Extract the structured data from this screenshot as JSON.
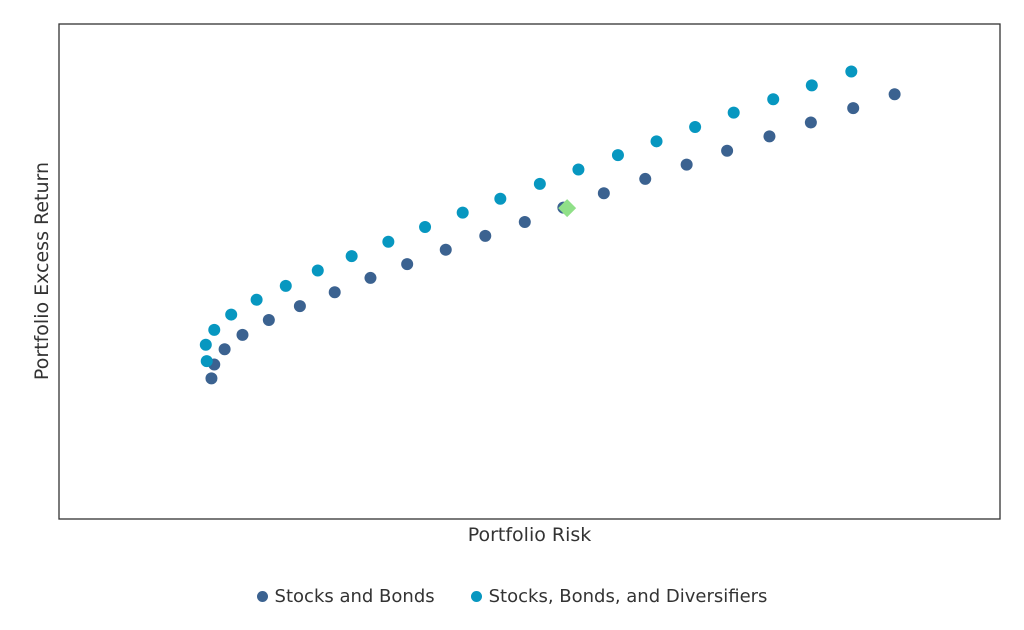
{
  "chart_data": {
    "type": "scatter",
    "title": "",
    "xlabel": "Portfolio Risk",
    "ylabel": "Portfolio Excess Return",
    "xlim": [
      0,
      100
    ],
    "ylim": [
      0,
      100
    ],
    "grid": false,
    "legend_position": "bottom-center",
    "series": [
      {
        "name": "Stocks and Bonds",
        "color": "#3b6290",
        "points": [
          [
            16.2,
            28.4
          ],
          [
            16.5,
            31.2
          ],
          [
            17.6,
            34.3
          ],
          [
            19.5,
            37.2
          ],
          [
            22.3,
            40.2
          ],
          [
            25.6,
            43.0
          ],
          [
            29.3,
            45.8
          ],
          [
            33.1,
            48.7
          ],
          [
            37.0,
            51.5
          ],
          [
            41.1,
            54.4
          ],
          [
            45.3,
            57.2
          ],
          [
            49.5,
            60.0
          ],
          [
            53.6,
            62.9
          ],
          [
            57.9,
            65.8
          ],
          [
            62.3,
            68.7
          ],
          [
            66.7,
            71.6
          ],
          [
            71.0,
            74.4
          ],
          [
            75.5,
            77.3
          ],
          [
            79.9,
            80.1
          ],
          [
            84.4,
            83.0
          ],
          [
            88.8,
            85.8
          ]
        ]
      },
      {
        "name": "Stocks, Bonds, and Diversifiers",
        "color": "#0797c0",
        "points": [
          [
            15.7,
            31.9
          ],
          [
            15.6,
            35.2
          ],
          [
            16.5,
            38.2
          ],
          [
            18.3,
            41.3
          ],
          [
            21.0,
            44.3
          ],
          [
            24.1,
            47.1
          ],
          [
            27.5,
            50.2
          ],
          [
            31.1,
            53.1
          ],
          [
            35.0,
            56.0
          ],
          [
            38.9,
            59.0
          ],
          [
            42.9,
            61.9
          ],
          [
            46.9,
            64.7
          ],
          [
            51.1,
            67.7
          ],
          [
            55.2,
            70.6
          ],
          [
            59.4,
            73.5
          ],
          [
            63.5,
            76.3
          ],
          [
            67.6,
            79.2
          ],
          [
            71.7,
            82.1
          ],
          [
            75.9,
            84.8
          ],
          [
            80.0,
            87.6
          ],
          [
            84.2,
            90.4
          ]
        ]
      },
      {
        "name": "",
        "color": "#90e088",
        "marker": "diamond",
        "points": [
          [
            54.0,
            62.8
          ]
        ]
      }
    ]
  }
}
